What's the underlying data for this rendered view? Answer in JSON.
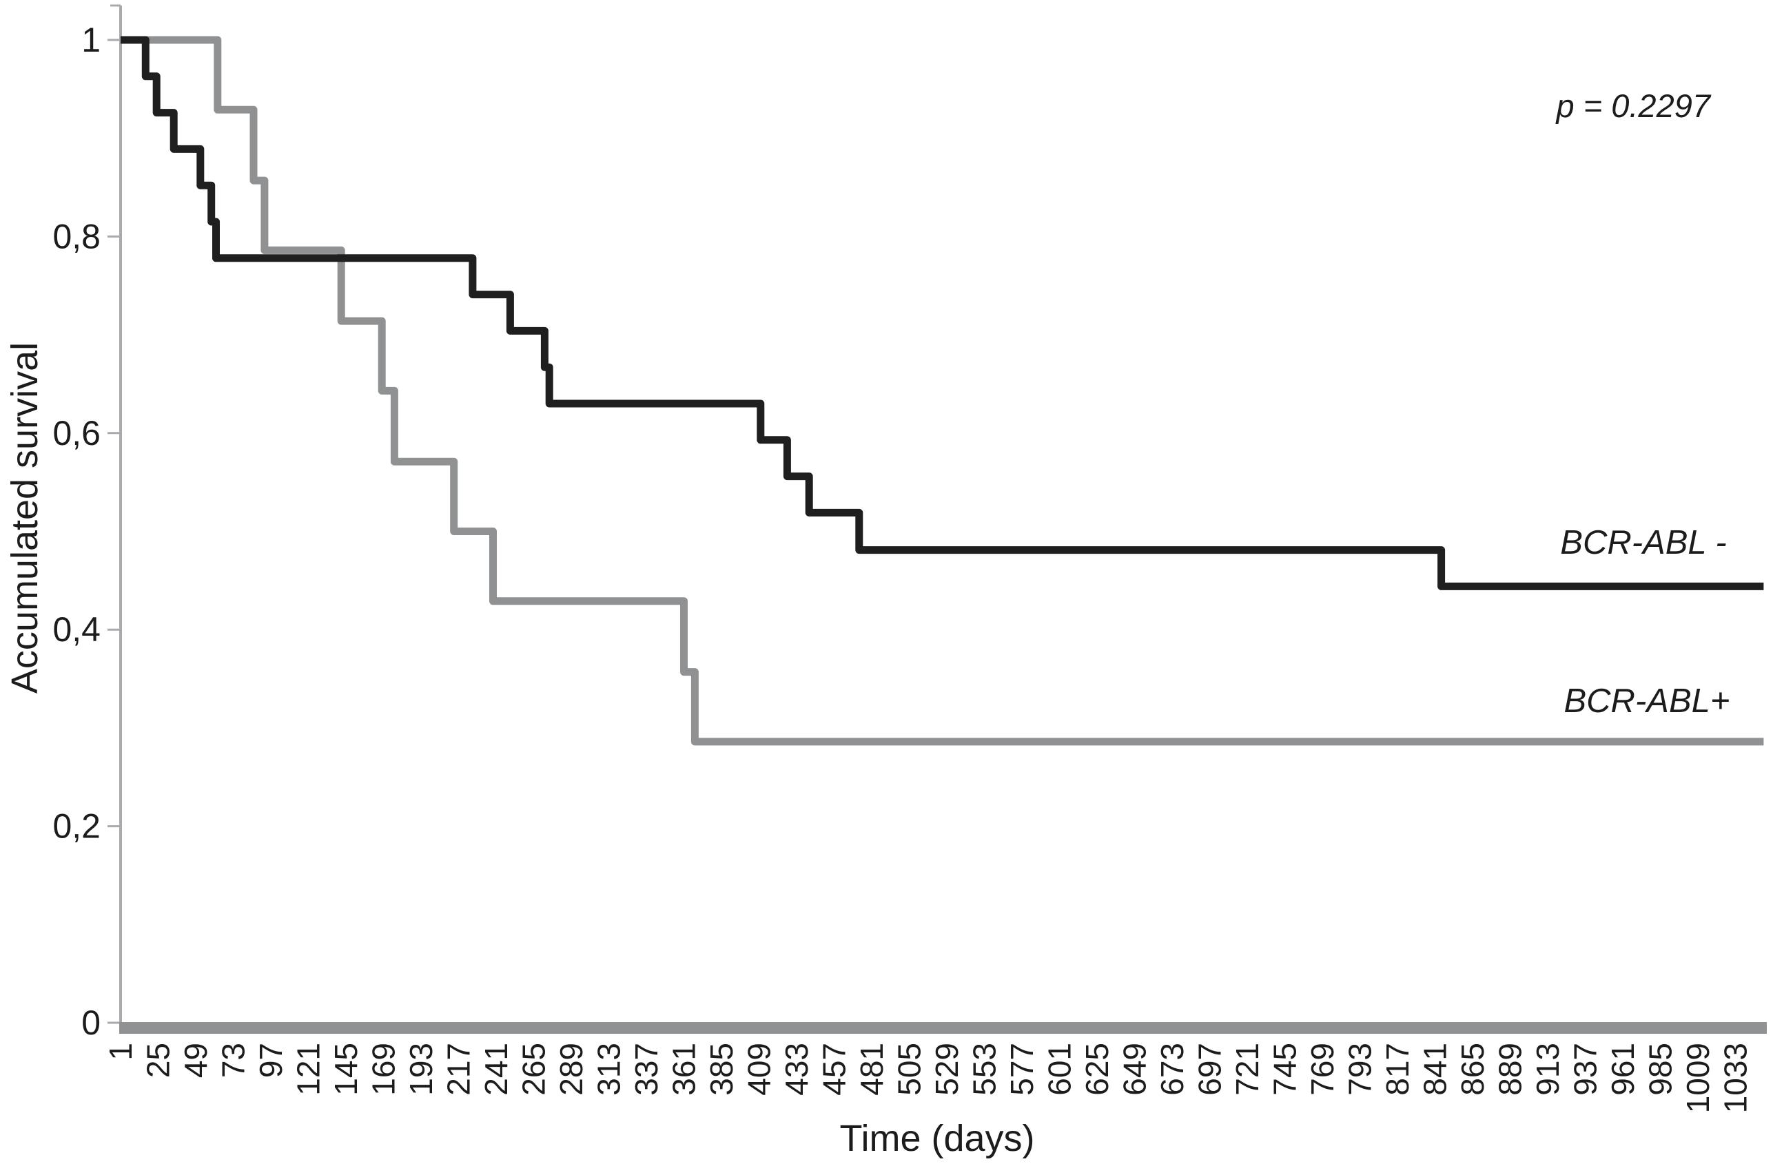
{
  "chart_data": {
    "type": "line",
    "subtype": "kaplan-meier-step",
    "title": "",
    "xlabel": "Time (days)",
    "ylabel": "Accumulated survival",
    "annotations": {
      "p_value": "p = 0.2297"
    },
    "legend_position": "right-inline",
    "grid": false,
    "xlim_days": [
      1,
      1051
    ],
    "ylim": [
      0,
      1
    ],
    "x_ticks": [
      "1",
      "25",
      "49",
      "73",
      "97",
      "121",
      "145",
      "169",
      "193",
      "217",
      "241",
      "265",
      "289",
      "313",
      "337",
      "361",
      "385",
      "409",
      "433",
      "457",
      "481",
      "505",
      "529",
      "553",
      "577",
      "601",
      "625",
      "649",
      "673",
      "697",
      "721",
      "745",
      "769",
      "793",
      "817",
      "841",
      "865",
      "889",
      "913",
      "937",
      "961",
      "985",
      "1009",
      "1033"
    ],
    "x_tick_values": [
      1,
      25,
      49,
      73,
      97,
      121,
      145,
      169,
      193,
      217,
      241,
      265,
      289,
      313,
      337,
      361,
      385,
      409,
      433,
      457,
      481,
      505,
      529,
      553,
      577,
      601,
      625,
      649,
      673,
      697,
      721,
      745,
      769,
      793,
      817,
      841,
      865,
      889,
      913,
      937,
      961,
      985,
      1009,
      1033
    ],
    "y_ticks": [
      "1",
      "0,8",
      "0,6",
      "0,4",
      "0,2",
      "0"
    ],
    "y_tick_values": [
      1,
      0.8,
      0.6,
      0.4,
      0.2,
      0
    ],
    "series": [
      {
        "name": "BCR-ABL -",
        "color": "#1f1f1f",
        "end_day": 1051,
        "steps": [
          [
            1,
            1.0
          ],
          [
            17,
            0.963
          ],
          [
            24,
            0.926
          ],
          [
            35,
            0.889
          ],
          [
            52,
            0.852
          ],
          [
            59,
            0.815
          ],
          [
            62,
            0.778
          ],
          [
            226,
            0.741
          ],
          [
            250,
            0.704
          ],
          [
            272,
            0.667
          ],
          [
            275,
            0.63
          ],
          [
            410,
            0.593
          ],
          [
            427,
            0.556
          ],
          [
            441,
            0.519
          ],
          [
            473,
            0.481
          ],
          [
            845,
            0.444
          ]
        ]
      },
      {
        "name": "BCR-ABL+",
        "color": "#8f9193",
        "end_day": 1051,
        "steps": [
          [
            1,
            1.0
          ],
          [
            63,
            0.929
          ],
          [
            86,
            0.857
          ],
          [
            93,
            0.786
          ],
          [
            142,
            0.714
          ],
          [
            168,
            0.643
          ],
          [
            176,
            0.571
          ],
          [
            214,
            0.5
          ],
          [
            239,
            0.429
          ],
          [
            361,
            0.357
          ],
          [
            368,
            0.286
          ]
        ]
      }
    ],
    "axis_colors": {
      "axis_line": "#a8aaad",
      "x_axis_bar": "#8f9193",
      "text": "#1c1c1c"
    }
  }
}
